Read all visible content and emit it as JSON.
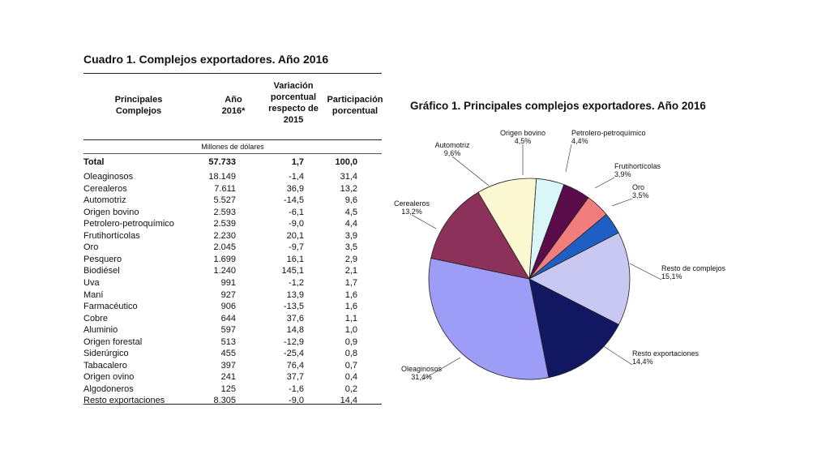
{
  "table": {
    "title": "Cuadro 1.  Complejos exportadores. Año 2016",
    "headers": {
      "complejos": "Principales\nComplejos",
      "anio": "Año\n2016*",
      "variacion": "Variación\nporcentual\nrespecto de\n2015",
      "participacion": "Participación\nporcentual"
    },
    "units": "Millones de dólares",
    "total": {
      "name": "Total",
      "value": "57.733",
      "var": "1,7",
      "part": "100,0"
    },
    "rows": [
      {
        "name": "Oleaginosos",
        "value": "18.149",
        "var": "-1,4",
        "part": "31,4"
      },
      {
        "name": "Cerealeros",
        "value": "7.611",
        "var": "36,9",
        "part": "13,2"
      },
      {
        "name": "Automotriz",
        "value": "5.527",
        "var": "-14,5",
        "part": "9,6"
      },
      {
        "name": "Origen bovino",
        "value": "2.593",
        "var": "-6,1",
        "part": "4,5"
      },
      {
        "name": "Petrolero-petroquímico",
        "value": "2.539",
        "var": "-9,0",
        "part": "4,4"
      },
      {
        "name": "Frutihortícolas",
        "value": "2.230",
        "var": "20,1",
        "part": "3,9"
      },
      {
        "name": "Oro",
        "value": "2.045",
        "var": "-9,7",
        "part": "3,5"
      },
      {
        "name": "Pesquero",
        "value": "1.699",
        "var": "16,1",
        "part": "2,9"
      },
      {
        "name": "Biodiésel",
        "value": "1.240",
        "var": "145,1",
        "part": "2,1"
      },
      {
        "name": "Uva",
        "value": "991",
        "var": "-1,2",
        "part": "1,7"
      },
      {
        "name": "Maní",
        "value": "927",
        "var": "13,9",
        "part": "1,6"
      },
      {
        "name": "Farmacéutico",
        "value": "906",
        "var": "-13,5",
        "part": "1,6"
      },
      {
        "name": "Cobre",
        "value": "644",
        "var": "37,6",
        "part": "1,1"
      },
      {
        "name": "Aluminio",
        "value": "597",
        "var": "14,8",
        "part": "1,0"
      },
      {
        "name": "Origen forestal",
        "value": "513",
        "var": "-12,9",
        "part": "0,9"
      },
      {
        "name": "Siderúrgico",
        "value": "455",
        "var": "-25,4",
        "part": "0,8"
      },
      {
        "name": "Tabacalero",
        "value": "397",
        "var": "76,4",
        "part": "0,7"
      },
      {
        "name": "Origen ovino",
        "value": "241",
        "var": "37,7",
        "part": "0,4"
      },
      {
        "name": "Algodoneros",
        "value": "125",
        "var": "-1,6",
        "part": "0,2"
      },
      {
        "name": "Resto exportaciones",
        "value": "8.305",
        "var": "-9,0",
        "part": "14,4"
      }
    ]
  },
  "chart_data": {
    "type": "pie",
    "title": "Gráfico 1. Principales complejos exportadores. Año 2016",
    "slices": [
      {
        "name": "Origen bovino",
        "value": 4.5,
        "label": "4,5%",
        "color": "#d9f7f7"
      },
      {
        "name": "Petrolero-petroquímico",
        "value": 4.4,
        "label": "4,4%",
        "color": "#5a0c4a"
      },
      {
        "name": "Frutihortícolas",
        "value": 3.9,
        "label": "3,9%",
        "color": "#f27d7d"
      },
      {
        "name": "Oro",
        "value": 3.5,
        "label": "3,5%",
        "color": "#1f5fc4"
      },
      {
        "name": "Resto de complejos",
        "value": 15.1,
        "label": "15,1%",
        "color": "#c8c8f2"
      },
      {
        "name": "Resto exportaciones",
        "value": 14.4,
        "label": "14,4%",
        "color": "#121761"
      },
      {
        "name": "Oleaginosos",
        "value": 31.4,
        "label": "31,4%",
        "color": "#9d9cf7"
      },
      {
        "name": "Cerealeros",
        "value": 13.2,
        "label": "13,2%",
        "color": "#8c3159"
      },
      {
        "name": "Automotriz",
        "value": 9.6,
        "label": "9,6%",
        "color": "#fbf8d2"
      }
    ]
  }
}
